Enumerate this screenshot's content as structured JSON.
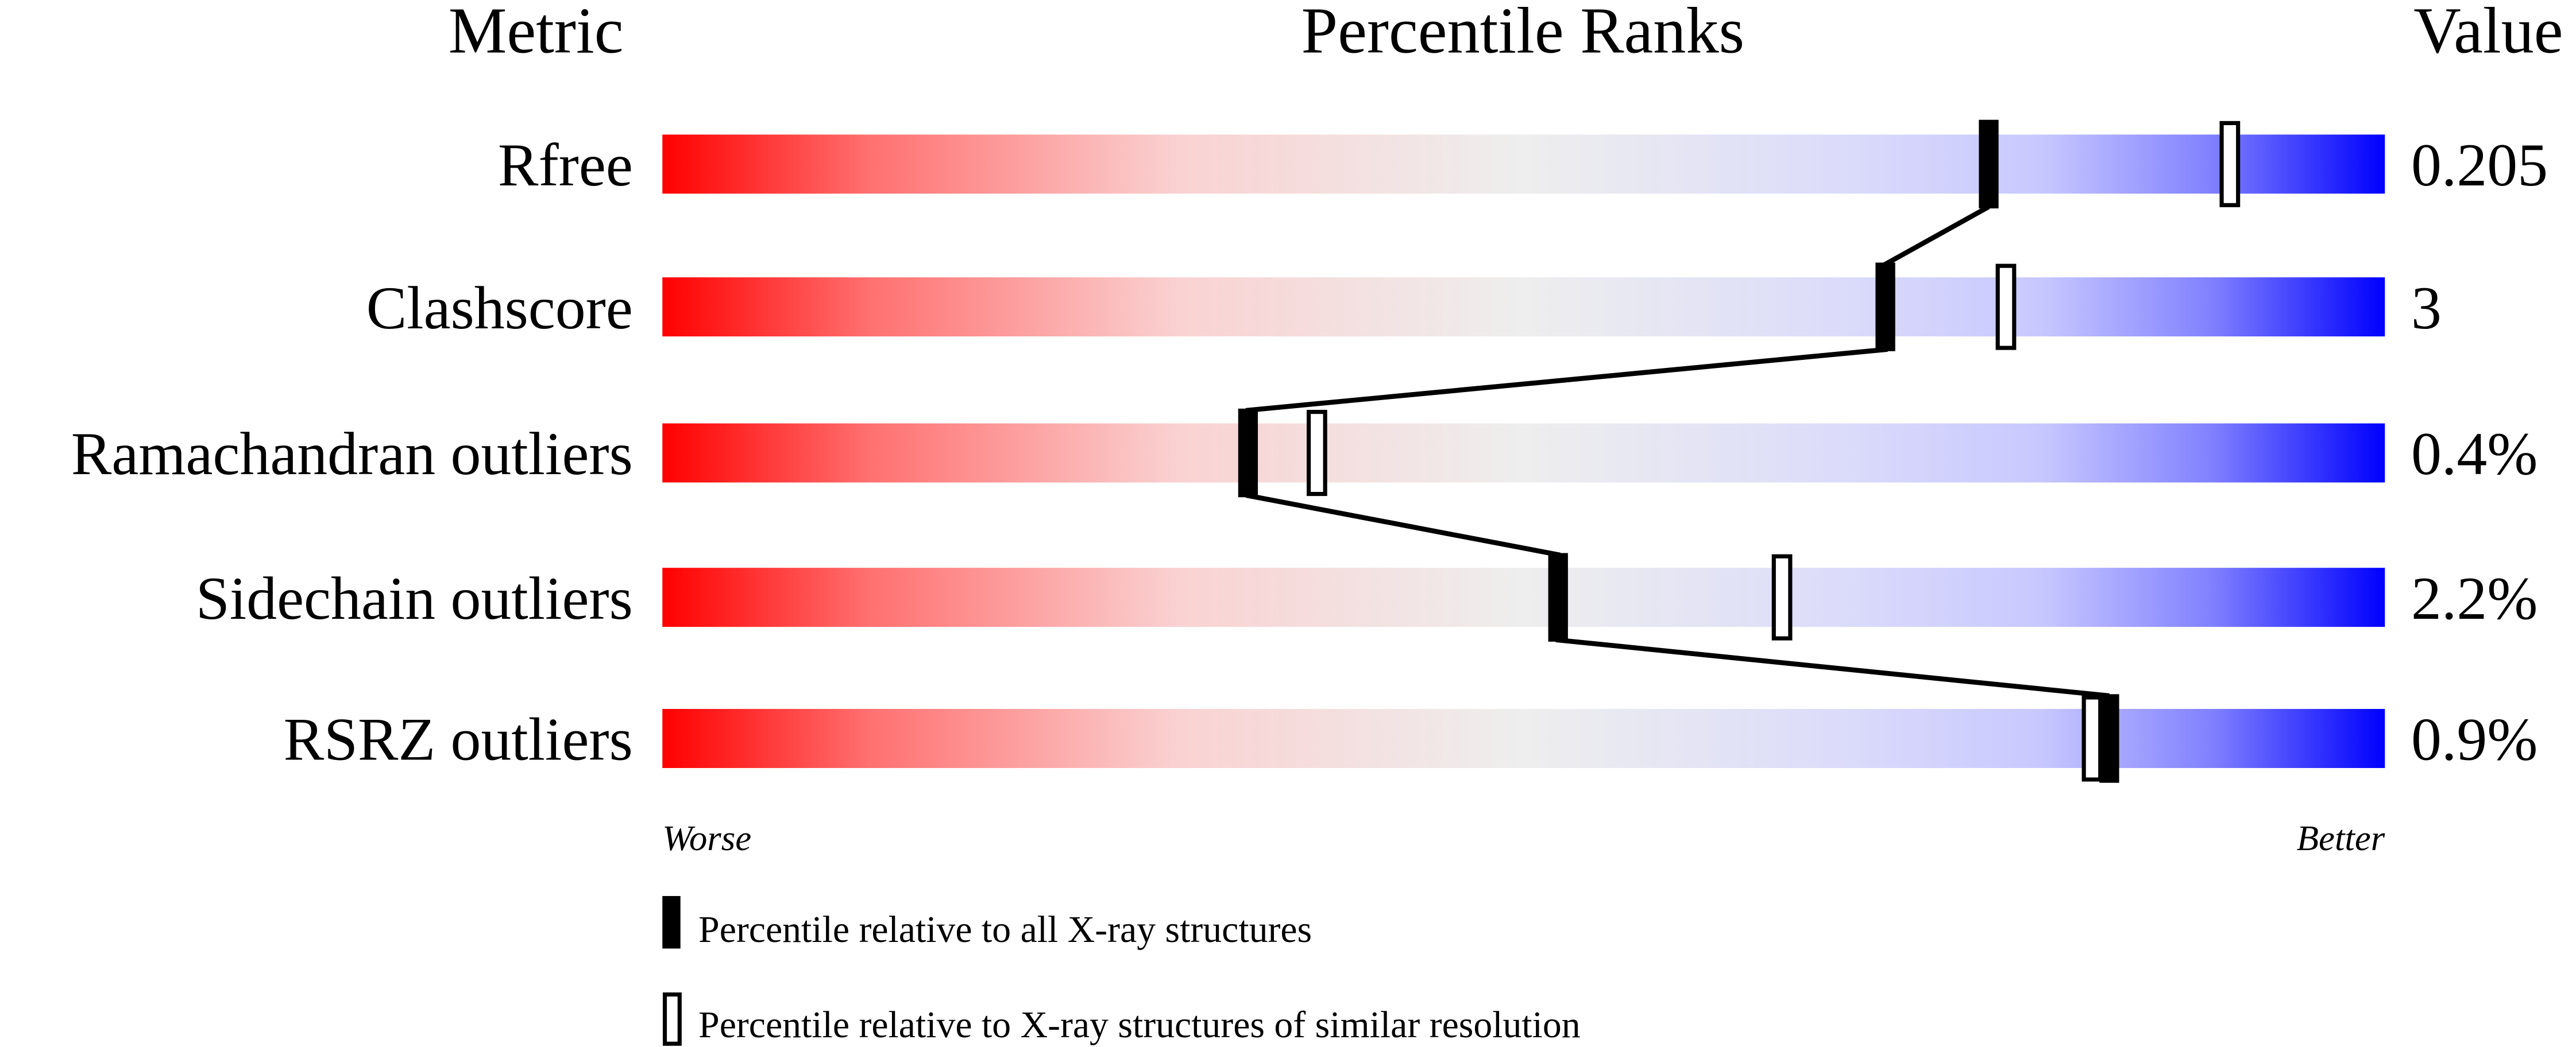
{
  "chart_data": {
    "type": "percentile-bar",
    "headers": {
      "metric": "Metric",
      "ranks": "Percentile Ranks",
      "value": "Value"
    },
    "xlim": [
      0,
      100
    ],
    "gradient_colors": [
      "#ff0000",
      "#eeeeee",
      "#0000ff"
    ],
    "rows": [
      {
        "metric": "Rfree",
        "value": "0.205",
        "percentile_all": 77,
        "percentile_similar": 91
      },
      {
        "metric": "Clashscore",
        "value": "3",
        "percentile_all": 71,
        "percentile_similar": 78
      },
      {
        "metric": "Ramachandran outliers",
        "value": "0.4%",
        "percentile_all": 34,
        "percentile_similar": 38
      },
      {
        "metric": "Sidechain outliers",
        "value": "2.2%",
        "percentile_all": 52,
        "percentile_similar": 65
      },
      {
        "metric": "RSRZ outliers",
        "value": "0.9%",
        "percentile_all": 84,
        "percentile_similar": 83
      }
    ],
    "axis_left_label": "Worse",
    "axis_right_label": "Better",
    "legend": [
      {
        "marker": "filled",
        "label": "Percentile relative to all X-ray structures"
      },
      {
        "marker": "open",
        "label": "Percentile relative to X-ray structures of similar resolution"
      }
    ]
  }
}
